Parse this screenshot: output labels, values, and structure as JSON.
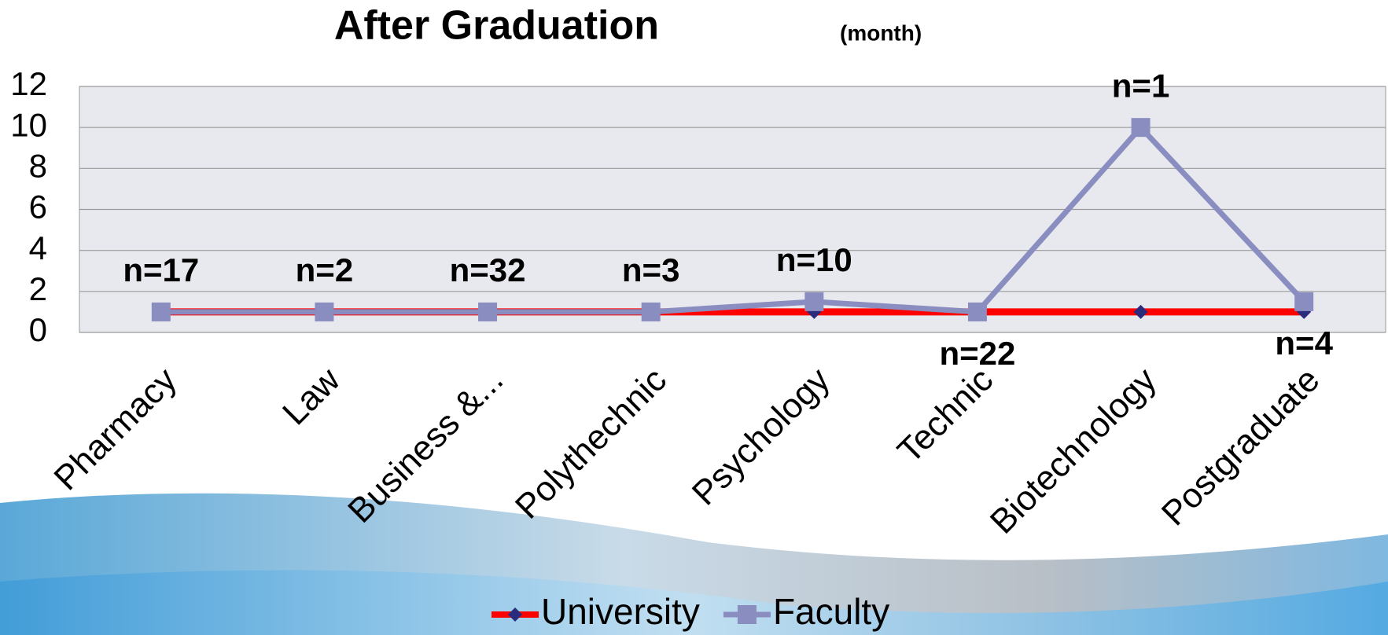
{
  "chart_data": {
    "type": "line",
    "title": "After Graduation",
    "subtitle": "(month)",
    "categories": [
      "Pharmacy",
      "Law",
      "Business &...",
      "Polythechnic",
      "Psychology",
      "Technic",
      "Biotechnology",
      "Postgraduate"
    ],
    "series": [
      {
        "name": "University",
        "color": "#ff0000",
        "marker_color": "#2b2b7d",
        "values": [
          1,
          1,
          1,
          1,
          1,
          1,
          1,
          1
        ]
      },
      {
        "name": "Faculty",
        "color": "#8a8dc0",
        "marker_color": "#8a8dc0",
        "values": [
          1,
          1,
          1,
          1,
          1.5,
          1,
          10,
          1.5
        ]
      }
    ],
    "annotations": [
      "n=17",
      "n=2",
      "n=32",
      "n=3",
      "n=10",
      "n=22",
      "n=1",
      "n=4"
    ],
    "ylim": [
      0,
      12
    ],
    "yticks": [
      0,
      2,
      4,
      6,
      8,
      10,
      12
    ],
    "grid": true,
    "legend": "bottom"
  }
}
